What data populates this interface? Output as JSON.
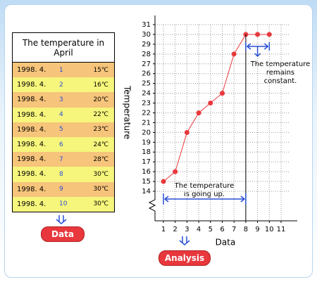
{
  "table": {
    "title": "The temperature in April",
    "rows": [
      [
        "1998. 4.",
        "1",
        "15℃"
      ],
      [
        "1998. 4.",
        "2",
        "16℃"
      ],
      [
        "1998. 4.",
        "3",
        "20℃"
      ],
      [
        "1998. 4.",
        "4",
        "22℃"
      ],
      [
        "1998. 4.",
        "5",
        "23℃"
      ],
      [
        "1998. 4.",
        "6",
        "24℃"
      ],
      [
        "1998. 4.",
        "7",
        "28℃"
      ],
      [
        "1998. 4.",
        "8",
        "30℃"
      ],
      [
        "1998. 4.",
        "9",
        "30℃"
      ],
      [
        "1998. 4.",
        "10",
        "30℃"
      ]
    ]
  },
  "buttons": {
    "data": "Data",
    "analysis": "Analysis"
  },
  "chart_data": {
    "type": "line",
    "x": [
      1,
      2,
      3,
      4,
      5,
      6,
      7,
      8,
      9,
      10
    ],
    "values": [
      15,
      16,
      20,
      22,
      23,
      24,
      28,
      30,
      30,
      30
    ],
    "color": "#e8383d",
    "xlim": [
      0,
      12
    ],
    "ylim": [
      14,
      31
    ],
    "xticks": [
      1,
      2,
      3,
      4,
      5,
      6,
      7,
      8,
      9,
      10,
      11
    ],
    "yticks": [
      14,
      15,
      16,
      17,
      18,
      19,
      20,
      21,
      22,
      23,
      24,
      25,
      26,
      27,
      28,
      29,
      30,
      31
    ],
    "x_label": "Data",
    "y_label": "Temperature",
    "grid": true,
    "annotations": [
      "The temperature is going up.",
      "The temperature remains constant."
    ]
  }
}
